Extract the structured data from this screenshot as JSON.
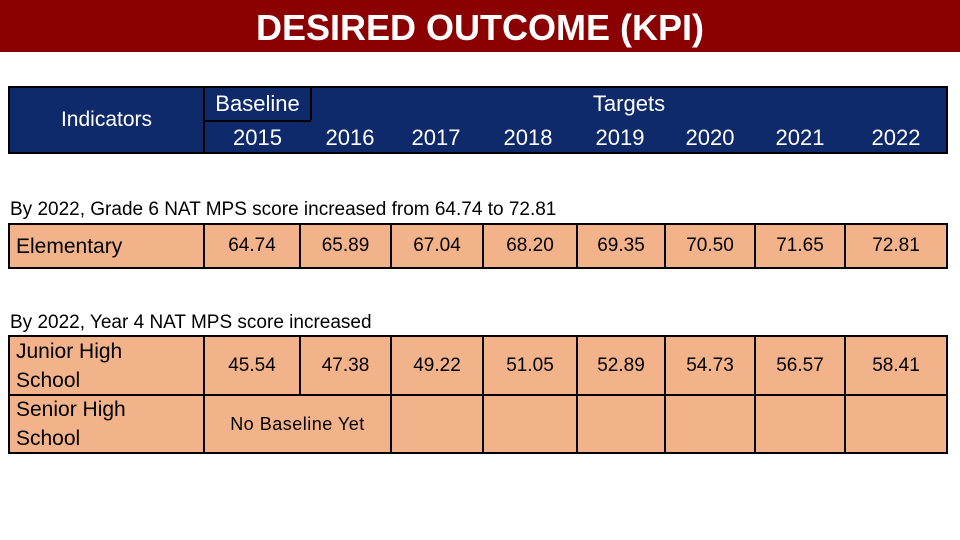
{
  "title": "DESIRED OUTCOME (KPI)",
  "header": {
    "indicators_label": "Indicators",
    "baseline_label": "Baseline",
    "targets_label": "Targets",
    "years": [
      "2015",
      "2016",
      "2017",
      "2018",
      "2019",
      "2020",
      "2021",
      "2022"
    ]
  },
  "section1": {
    "note": "By 2022, Grade 6  NAT MPS score increased from 64.74 to 72.81",
    "row": {
      "label": "Elementary",
      "values": [
        "64.74",
        "65.89",
        "67.04",
        "68.20",
        "69.35",
        "70.50",
        "71.65",
        "72.81"
      ]
    }
  },
  "section2": {
    "note": "By 2022, Year 4  NAT MPS score increased",
    "junior": {
      "label_line1": "Junior High",
      "label_line2": "School",
      "values": [
        "45.54",
        "47.38",
        "49.22",
        "51.05",
        "52.89",
        "54.73",
        "56.57",
        "58.41"
      ]
    },
    "senior": {
      "label_line1": "Senior High",
      "label_line2": "School",
      "baseline_text": "No Baseline Yet"
    }
  },
  "colors": {
    "title_bg": "#8b0000",
    "header_bg": "#0f2a6b",
    "cell_bg": "#f2b38a"
  }
}
